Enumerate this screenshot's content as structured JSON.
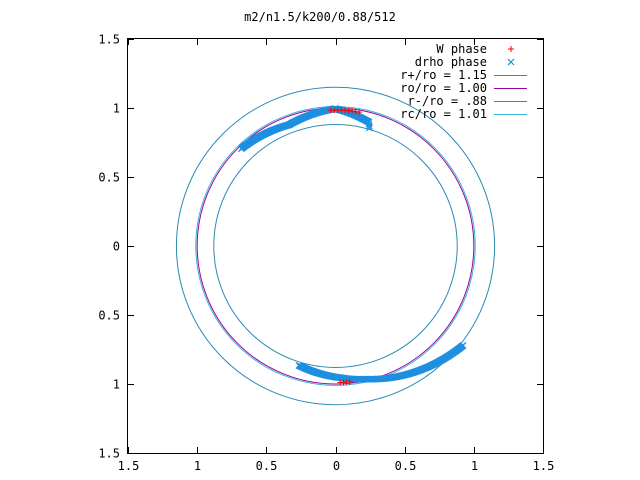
{
  "chart_data": {
    "type": "scatter",
    "title": "m2/n1.5/k200/0.88/512",
    "xlabel": "",
    "ylabel": "",
    "xlim": [
      -1.5,
      1.5
    ],
    "ylim": [
      -1.5,
      1.5
    ],
    "x_ticks": [
      "1.5",
      "1",
      "0.5",
      "0",
      "0.5",
      "1",
      "1.5"
    ],
    "y_ticks": [
      "1.5",
      "1",
      "0.5",
      "0",
      "0.5",
      "1",
      "1.5"
    ],
    "legend_placement": "top-right",
    "grid": false,
    "series": [
      {
        "name": "W phase",
        "kind": "points",
        "marker": "+",
        "color": "#ff0000",
        "arcs": [
          {
            "r": 0.985,
            "start_deg": 92,
            "end_deg": 80
          },
          {
            "r": 0.99,
            "start_deg": 272,
            "end_deg": 276
          }
        ]
      },
      {
        "name": "drho phase",
        "kind": "points",
        "marker": "x",
        "color": "#1f8fe0",
        "arcs": [
          {
            "r_start": 0.98,
            "r_end": 0.94,
            "start_deg": 134,
            "end_deg": 111
          },
          {
            "r_start": 0.94,
            "r_end": 0.995,
            "start_deg": 111,
            "end_deg": 90
          },
          {
            "r_start": 0.995,
            "r_end": 0.93,
            "start_deg": 90,
            "end_deg": 75
          },
          {
            "r_start": 0.93,
            "r_end": 0.89,
            "start_deg": 75,
            "end_deg": 74
          },
          {
            "r_start": 0.905,
            "r_end": 0.955,
            "start_deg": 253,
            "end_deg": 272
          },
          {
            "r_start": 0.955,
            "r_end": 0.99,
            "start_deg": 272,
            "end_deg": 283
          },
          {
            "r_start": 0.99,
            "r_end": 1.17,
            "start_deg": 283,
            "end_deg": 322
          }
        ]
      },
      {
        "name": "r+/ro = 1.15",
        "kind": "circle",
        "r": 1.15,
        "color": "#2a8ab8"
      },
      {
        "name": "ro/ro = 1.00",
        "kind": "circle",
        "r": 1.0,
        "color": "#a0009f"
      },
      {
        "name": "r-/ro = .88",
        "kind": "circle",
        "r": 0.88,
        "color": "#2a8ab8"
      },
      {
        "name": "rc/ro = 1.01",
        "kind": "circle",
        "r": 1.01,
        "color": "#39b4d9"
      }
    ]
  }
}
